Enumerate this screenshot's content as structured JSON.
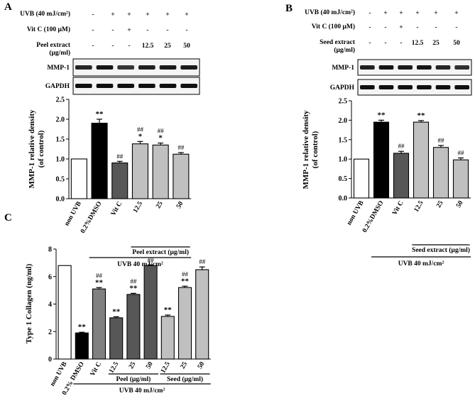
{
  "panels": [
    {
      "id": "A",
      "label": "A",
      "table": {
        "rows": [
          {
            "label": "UVB (40 mJ/cm²)",
            "marks": [
              "-",
              "+",
              "+",
              "+",
              "+",
              "+"
            ]
          },
          {
            "label": "Vit C (100 μM)",
            "marks": [
              "-",
              "-",
              "+",
              "-",
              "-",
              "-"
            ]
          },
          {
            "label": "Peel extract",
            "label2": "(μg/ml)",
            "marks": [
              "-",
              "-",
              "-",
              "12.5",
              "25",
              "50"
            ]
          }
        ]
      },
      "blots": [
        "MMP-1",
        "GAPDH"
      ]
    },
    {
      "id": "B",
      "label": "B",
      "table": {
        "rows": [
          {
            "label": "UVB (40 mJ/cm²)",
            "marks": [
              "-",
              "+",
              "+",
              "+",
              "+",
              "+"
            ]
          },
          {
            "label": "Vit C (100 μM)",
            "marks": [
              "-",
              "-",
              "+",
              "-",
              "-",
              "-"
            ]
          },
          {
            "label": "Seed extract",
            "label2": "(μg/ml)",
            "marks": [
              "-",
              "-",
              "-",
              "12.5",
              "25",
              "50"
            ]
          }
        ]
      },
      "blots": [
        "MMP-1",
        "GAPDH"
      ]
    },
    {
      "id": "C",
      "label": "C"
    }
  ],
  "chart_data": [
    {
      "id": "A",
      "type": "bar",
      "title": "",
      "xlabel": "",
      "ylabel": "MMP-1 relative density",
      "ylabel2": "(of control)",
      "ylim": [
        0,
        2.5
      ],
      "yticks": [
        "0.0",
        "0.5",
        "1.0",
        "1.5",
        "2.0",
        "2.5"
      ],
      "categories": [
        "non UVB",
        "0.2%DMSO",
        "Vit C",
        "12.5",
        "25",
        "50"
      ],
      "values": [
        1.0,
        1.9,
        0.9,
        1.38,
        1.35,
        1.12
      ],
      "errors": [
        0.0,
        0.1,
        0.04,
        0.06,
        0.05,
        0.04
      ],
      "colors": [
        "#ffffff",
        "#000000",
        "#575757",
        "#c0c0c0",
        "#c0c0c0",
        "#c0c0c0"
      ],
      "annotations": [
        {
          "index": 1,
          "lines": [
            "**"
          ]
        },
        {
          "index": 2,
          "lines": [
            "##"
          ]
        },
        {
          "index": 3,
          "lines": [
            "##",
            "*"
          ]
        },
        {
          "index": 4,
          "lines": [
            "##",
            "*"
          ]
        },
        {
          "index": 5,
          "lines": [
            "##"
          ]
        }
      ],
      "group_brackets": [
        {
          "label": "Peel extract (μg/ml)",
          "from": 3,
          "to": 5
        }
      ],
      "bottom_bracket": {
        "label": "UVB 40 mJ/cm²",
        "from": 1,
        "to": 5
      }
    },
    {
      "id": "B",
      "type": "bar",
      "title": "",
      "xlabel": "",
      "ylabel": "MMP-1 relative density",
      "ylabel2": "(of control)",
      "ylim": [
        0,
        2.5
      ],
      "yticks": [
        "0.0",
        "0.5",
        "1.0",
        "1.5",
        "2.0",
        "2.5"
      ],
      "categories": [
        "non UVB",
        "0.2%DMSO",
        "Vit C",
        "12.5",
        "25",
        "50"
      ],
      "values": [
        1.0,
        1.95,
        1.15,
        1.95,
        1.3,
        0.98
      ],
      "errors": [
        0.0,
        0.05,
        0.05,
        0.04,
        0.05,
        0.05
      ],
      "colors": [
        "#ffffff",
        "#000000",
        "#575757",
        "#c0c0c0",
        "#c0c0c0",
        "#c0c0c0"
      ],
      "annotations": [
        {
          "index": 1,
          "lines": [
            "**"
          ]
        },
        {
          "index": 2,
          "lines": [
            "##"
          ]
        },
        {
          "index": 3,
          "lines": [
            "**"
          ]
        },
        {
          "index": 4,
          "lines": [
            "##"
          ]
        },
        {
          "index": 5,
          "lines": [
            "##"
          ]
        }
      ],
      "group_brackets": [
        {
          "label": "Seed extract (μg/ml)",
          "from": 3,
          "to": 5
        }
      ],
      "bottom_bracket": {
        "label": "UVB 40 mJ/cm²",
        "from": 1,
        "to": 5
      }
    },
    {
      "id": "C",
      "type": "bar",
      "title": "",
      "xlabel": "",
      "ylabel": "Type 1 Collagen (ng/ml)",
      "ylim": [
        0,
        8
      ],
      "yticks": [
        "0",
        "2",
        "4",
        "6",
        "8"
      ],
      "categories": [
        "non UVB",
        "0.2% DMSO",
        "Vit C",
        "12.5",
        "25",
        "50",
        "12.5",
        "25",
        "50"
      ],
      "values": [
        6.8,
        1.9,
        5.1,
        3.0,
        4.7,
        6.8,
        3.1,
        5.2,
        6.5
      ],
      "errors": [
        0.0,
        0.05,
        0.1,
        0.08,
        0.08,
        0.05,
        0.1,
        0.1,
        0.2
      ],
      "colors": [
        "#ffffff",
        "#000000",
        "#808080",
        "#575757",
        "#575757",
        "#575757",
        "#c0c0c0",
        "#c0c0c0",
        "#c0c0c0"
      ],
      "annotations": [
        {
          "index": 1,
          "lines": [
            "**"
          ]
        },
        {
          "index": 2,
          "lines": [
            "##",
            "**"
          ]
        },
        {
          "index": 3,
          "lines": [
            "**"
          ]
        },
        {
          "index": 4,
          "lines": [
            "##",
            "**"
          ]
        },
        {
          "index": 5,
          "lines": [
            "##"
          ]
        },
        {
          "index": 6,
          "lines": [
            "**"
          ]
        },
        {
          "index": 7,
          "lines": [
            "##",
            "**"
          ]
        },
        {
          "index": 8,
          "lines": [
            "##"
          ]
        }
      ],
      "group_brackets": [
        {
          "label": "Peel (μg/ml)",
          "from": 3,
          "to": 5
        },
        {
          "label": "Seed (μg/ml)",
          "from": 6,
          "to": 8
        }
      ],
      "bottom_bracket": {
        "label": "UVB 40 mJ/cm²",
        "from": 1,
        "to": 8
      }
    }
  ]
}
